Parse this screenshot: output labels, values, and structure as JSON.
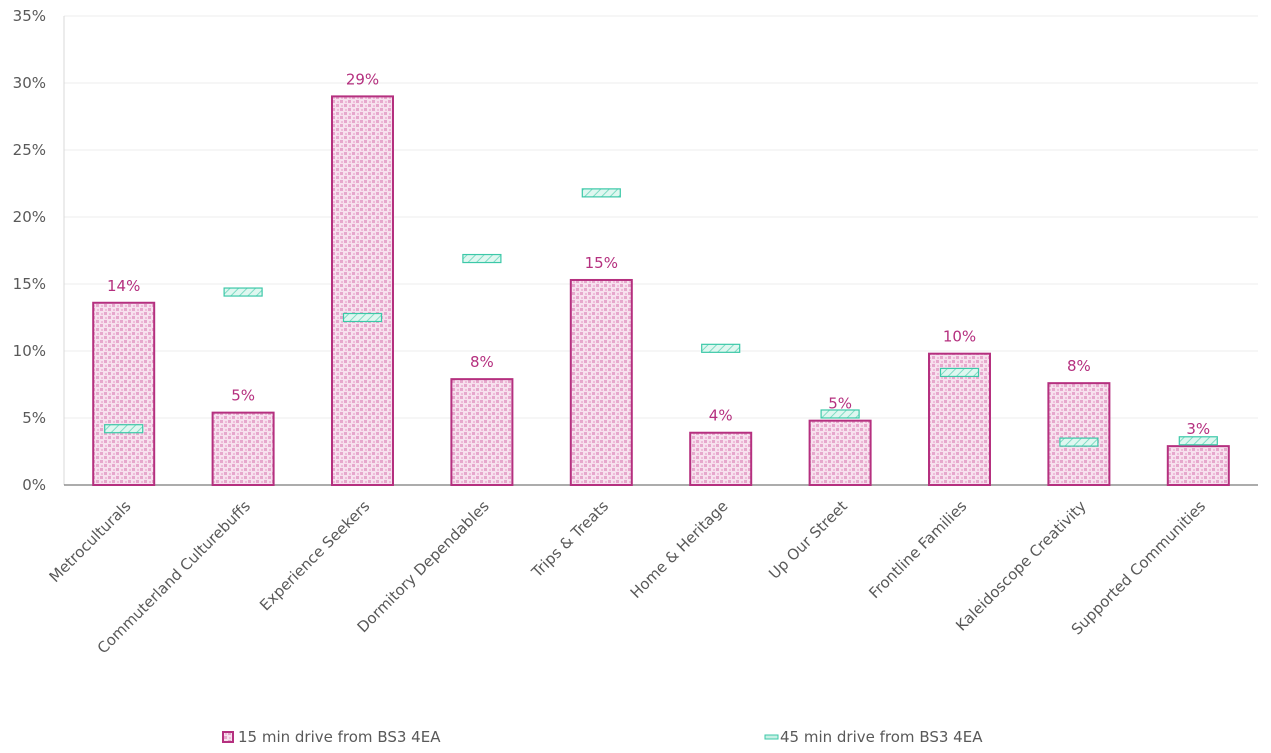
{
  "chart_data": {
    "type": "bar",
    "categories": [
      "Metroculturals",
      "Commuterland Culturebuffs",
      "Experience Seekers",
      "Dormitory Dependables",
      "Trips & Treats",
      "Home & Heritage",
      "Up Our Street",
      "Frontline Families",
      "Kaleidoscope Creativity",
      "Supported Communities"
    ],
    "series": [
      {
        "name": "15 min drive from BS3 4EA",
        "mark": "bar",
        "values": [
          13.6,
          5.4,
          29.0,
          7.9,
          15.3,
          3.9,
          4.8,
          9.8,
          7.6,
          2.9
        ],
        "labels": [
          "14%",
          "5%",
          "29%",
          "8%",
          "15%",
          "4%",
          "5%",
          "10%",
          "8%",
          "3%"
        ]
      },
      {
        "name": "45 min drive from BS3 4EA",
        "mark": "dash",
        "values": [
          4.2,
          14.4,
          12.5,
          16.9,
          21.8,
          10.2,
          5.3,
          8.4,
          3.2,
          3.3
        ]
      }
    ],
    "ylim": [
      0,
      35
    ],
    "yticks": [
      "0%",
      "5%",
      "10%",
      "15%",
      "20%",
      "25%",
      "30%",
      "35%"
    ],
    "grid": true,
    "legend_position": "bottom",
    "title": "",
    "xlabel": "",
    "ylabel": "",
    "colors": {
      "bar_stroke": "#b5307f",
      "bar_fill": "#f3d3e6",
      "bar_pattern": "#e6a7cc",
      "dash_stroke": "#3cc8a8",
      "dash_fill": "#c8f0e5",
      "data_label": "#b5307f",
      "axis": "#595959",
      "grid": "#ececec"
    }
  }
}
